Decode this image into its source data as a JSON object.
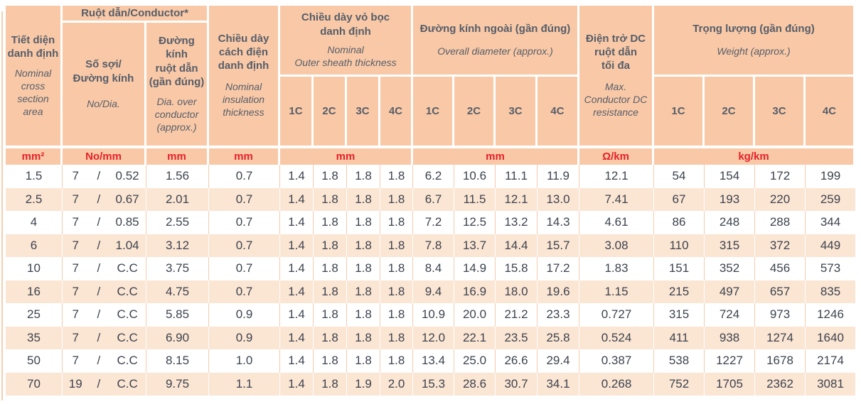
{
  "misc": {
    "slash": "/"
  },
  "colors": {
    "header_bg": "#f9c9a7",
    "stripe_bg": "#fbe5d3",
    "unit_text": "#e5212a",
    "header_text": "#565d69",
    "data_text": "#3d434e"
  },
  "header": {
    "cross_section": {
      "vi": "Tiết diện\ndanh định",
      "en": "Nominal\ncross\nsection\narea"
    },
    "conductor_group": {
      "label": "Ruột dẫn/Conductor*"
    },
    "strands": {
      "vi": "Số sợi/\nĐường kính",
      "en": "No/Dia."
    },
    "dia_over_conductor": {
      "vi": "Đường kính\nruột dẫn\n(gần đúng)",
      "en": "Dia. over\nconductor\n(approx.)"
    },
    "insulation": {
      "vi": "Chiều dày\ncách điện\ndanh định",
      "en": "Nominal\ninsulation\nthickness"
    },
    "sheath_group": {
      "vi": "Chiều dày vỏ bọc\ndanh định",
      "en": "Nominal\nOuter sheath thickness"
    },
    "diameter_group": {
      "vi": "Đường kính ngoài (gần đúng)",
      "en": "Overall diameter (approx.)"
    },
    "dc_resistance": {
      "vi": "Điện trở DC\nruột dẫn\ntối đa",
      "en": "Max.\nConductor DC\nresistance"
    },
    "weight_group": {
      "vi": "Trọng lượng (gần đúng)",
      "en": "Weight (approx.)"
    },
    "core_labels": [
      "1C",
      "2C",
      "3C",
      "4C"
    ]
  },
  "units": {
    "cross_section": "mm²",
    "strands": "No/mm",
    "dia_over_conductor": "mm",
    "insulation": "mm",
    "sheath": "mm",
    "diameter": "mm",
    "dc_resistance": "Ω/km",
    "weight": "kg/km"
  },
  "rows": [
    {
      "size": "1.5",
      "strands": "7",
      "dia": "0.52",
      "conductor_dia": "1.56",
      "insulation": "0.7",
      "sheath": [
        "1.4",
        "1.8",
        "1.8",
        "1.8"
      ],
      "overall": [
        "6.2",
        "10.6",
        "11.1",
        "11.9"
      ],
      "dc": "12.1",
      "weight": [
        "54",
        "154",
        "172",
        "199"
      ]
    },
    {
      "size": "2.5",
      "strands": "7",
      "dia": "0.67",
      "conductor_dia": "2.01",
      "insulation": "0.7",
      "sheath": [
        "1.4",
        "1.8",
        "1.8",
        "1.8"
      ],
      "overall": [
        "6.7",
        "11.5",
        "12.1",
        "13.0"
      ],
      "dc": "7.41",
      "weight": [
        "67",
        "193",
        "220",
        "259"
      ]
    },
    {
      "size": "4",
      "strands": "7",
      "dia": "0.85",
      "conductor_dia": "2.55",
      "insulation": "0.7",
      "sheath": [
        "1.4",
        "1.8",
        "1.8",
        "1.8"
      ],
      "overall": [
        "7.2",
        "12.5",
        "13.2",
        "14.3"
      ],
      "dc": "4.61",
      "weight": [
        "86",
        "248",
        "288",
        "344"
      ]
    },
    {
      "size": "6",
      "strands": "7",
      "dia": "1.04",
      "conductor_dia": "3.12",
      "insulation": "0.7",
      "sheath": [
        "1.4",
        "1.8",
        "1.8",
        "1.8"
      ],
      "overall": [
        "7.8",
        "13.7",
        "14.4",
        "15.7"
      ],
      "dc": "3.08",
      "weight": [
        "110",
        "315",
        "372",
        "449"
      ]
    },
    {
      "size": "10",
      "strands": "7",
      "dia": "C.C",
      "conductor_dia": "3.75",
      "insulation": "0.7",
      "sheath": [
        "1.4",
        "1.8",
        "1.8",
        "1.8"
      ],
      "overall": [
        "8.4",
        "14.9",
        "15.8",
        "17.2"
      ],
      "dc": "1.83",
      "weight": [
        "151",
        "352",
        "456",
        "573"
      ]
    },
    {
      "size": "16",
      "strands": "7",
      "dia": "C.C",
      "conductor_dia": "4.75",
      "insulation": "0.7",
      "sheath": [
        "1.4",
        "1.8",
        "1.8",
        "1.8"
      ],
      "overall": [
        "9.4",
        "16.9",
        "18.0",
        "19.6"
      ],
      "dc": "1.15",
      "weight": [
        "215",
        "497",
        "657",
        "835"
      ]
    },
    {
      "size": "25",
      "strands": "7",
      "dia": "C.C",
      "conductor_dia": "5.85",
      "insulation": "0.9",
      "sheath": [
        "1.4",
        "1.8",
        "1.8",
        "1.8"
      ],
      "overall": [
        "10.9",
        "20.0",
        "21.2",
        "23.3"
      ],
      "dc": "0.727",
      "weight": [
        "315",
        "724",
        "973",
        "1246"
      ]
    },
    {
      "size": "35",
      "strands": "7",
      "dia": "C.C",
      "conductor_dia": "6.90",
      "insulation": "0.9",
      "sheath": [
        "1.4",
        "1.8",
        "1.8",
        "1.8"
      ],
      "overall": [
        "12.0",
        "22.1",
        "23.5",
        "25.8"
      ],
      "dc": "0.524",
      "weight": [
        "411",
        "938",
        "1274",
        "1640"
      ]
    },
    {
      "size": "50",
      "strands": "7",
      "dia": "C.C",
      "conductor_dia": "8.15",
      "insulation": "1.0",
      "sheath": [
        "1.4",
        "1.8",
        "1.8",
        "1.8"
      ],
      "overall": [
        "13.4",
        "25.0",
        "26.6",
        "29.4"
      ],
      "dc": "0.387",
      "weight": [
        "538",
        "1227",
        "1678",
        "2174"
      ]
    },
    {
      "size": "70",
      "strands": "19",
      "dia": "C.C",
      "conductor_dia": "9.75",
      "insulation": "1.1",
      "sheath": [
        "1.4",
        "1.8",
        "1.9",
        "2.0"
      ],
      "overall": [
        "15.3",
        "28.6",
        "30.7",
        "34.1"
      ],
      "dc": "0.268",
      "weight": [
        "752",
        "1705",
        "2362",
        "3081"
      ]
    }
  ]
}
